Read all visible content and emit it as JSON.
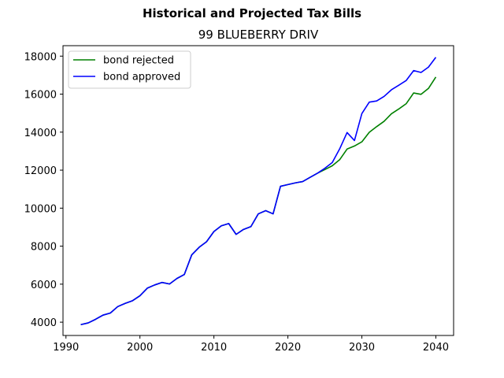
{
  "chart_data": {
    "type": "line",
    "suptitle": "Historical and Projected Tax Bills",
    "title": "99 BLUEBERRY DRIV",
    "xlabel": "",
    "ylabel": "",
    "xlim": [
      1989.6,
      2042.4
    ],
    "ylim": [
      3300,
      18550
    ],
    "x_ticks": [
      1990,
      2000,
      2010,
      2020,
      2030,
      2040
    ],
    "y_ticks": [
      4000,
      6000,
      8000,
      10000,
      12000,
      14000,
      16000,
      18000
    ],
    "grid": false,
    "legend_position": "top-left",
    "series": [
      {
        "name": "bond rejected",
        "color": "#008000",
        "x": [
          1992,
          1993,
          1994,
          1995,
          1996,
          1997,
          1998,
          1999,
          2000,
          2001,
          2002,
          2003,
          2004,
          2005,
          2006,
          2007,
          2008,
          2009,
          2010,
          2011,
          2012,
          2013,
          2014,
          2015,
          2016,
          2017,
          2018,
          2019,
          2020,
          2021,
          2022,
          2023,
          2024,
          2025,
          2026,
          2027,
          2028,
          2029,
          2030,
          2031,
          2032,
          2033,
          2034,
          2035,
          2036,
          2037,
          2038,
          2039,
          2040
        ],
        "y": [
          3870,
          3960,
          4150,
          4370,
          4480,
          4820,
          4990,
          5130,
          5390,
          5790,
          5960,
          6090,
          6010,
          6300,
          6510,
          7540,
          7940,
          8230,
          8770,
          9070,
          9190,
          8620,
          8880,
          9030,
          9700,
          9870,
          9700,
          11150,
          11240,
          11330,
          11400,
          11620,
          11840,
          12030,
          12230,
          12550,
          13110,
          13270,
          13490,
          13990,
          14290,
          14570,
          14970,
          15220,
          15500,
          16060,
          15990,
          16300,
          16900
        ]
      },
      {
        "name": "bond approved",
        "color": "#0000ff",
        "x": [
          1992,
          1993,
          1994,
          1995,
          1996,
          1997,
          1998,
          1999,
          2000,
          2001,
          2002,
          2003,
          2004,
          2005,
          2006,
          2007,
          2008,
          2009,
          2010,
          2011,
          2012,
          2013,
          2014,
          2015,
          2016,
          2017,
          2018,
          2019,
          2020,
          2021,
          2022,
          2023,
          2024,
          2025,
          2026,
          2027,
          2028,
          2029,
          2030,
          2031,
          2032,
          2033,
          2034,
          2035,
          2036,
          2037,
          2038,
          2039,
          2040
        ],
        "y": [
          3870,
          3960,
          4150,
          4370,
          4480,
          4820,
          4990,
          5130,
          5390,
          5790,
          5960,
          6090,
          6010,
          6300,
          6510,
          7540,
          7940,
          8230,
          8770,
          9070,
          9190,
          8620,
          8880,
          9030,
          9700,
          9870,
          9700,
          11150,
          11240,
          11330,
          11400,
          11620,
          11840,
          12100,
          12400,
          13120,
          13980,
          13560,
          14980,
          15580,
          15640,
          15880,
          16230,
          16470,
          16720,
          17240,
          17140,
          17420,
          17940
        ]
      }
    ]
  }
}
